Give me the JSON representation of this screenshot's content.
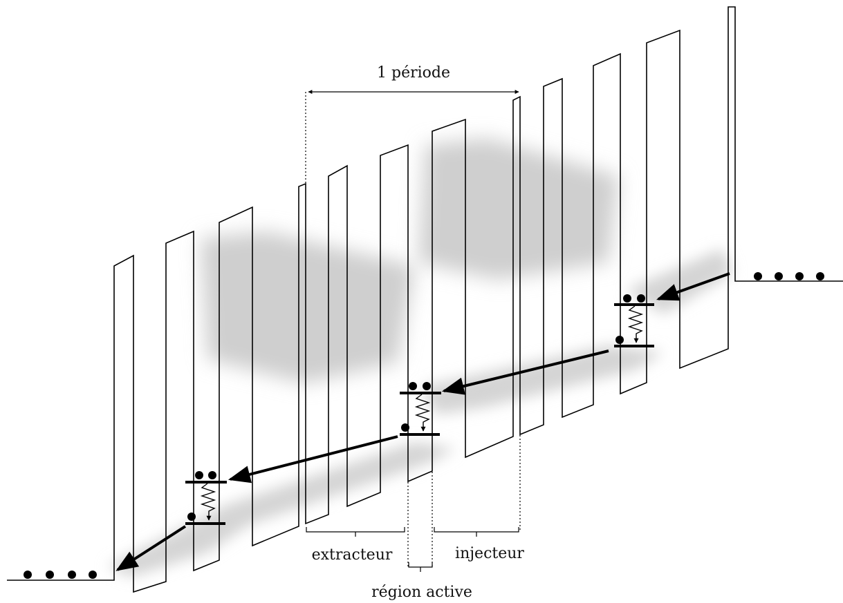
{
  "labels": {
    "period": "1 période",
    "extractor": "extracteur",
    "injector": "injecteur",
    "active_region": "région active"
  }
}
